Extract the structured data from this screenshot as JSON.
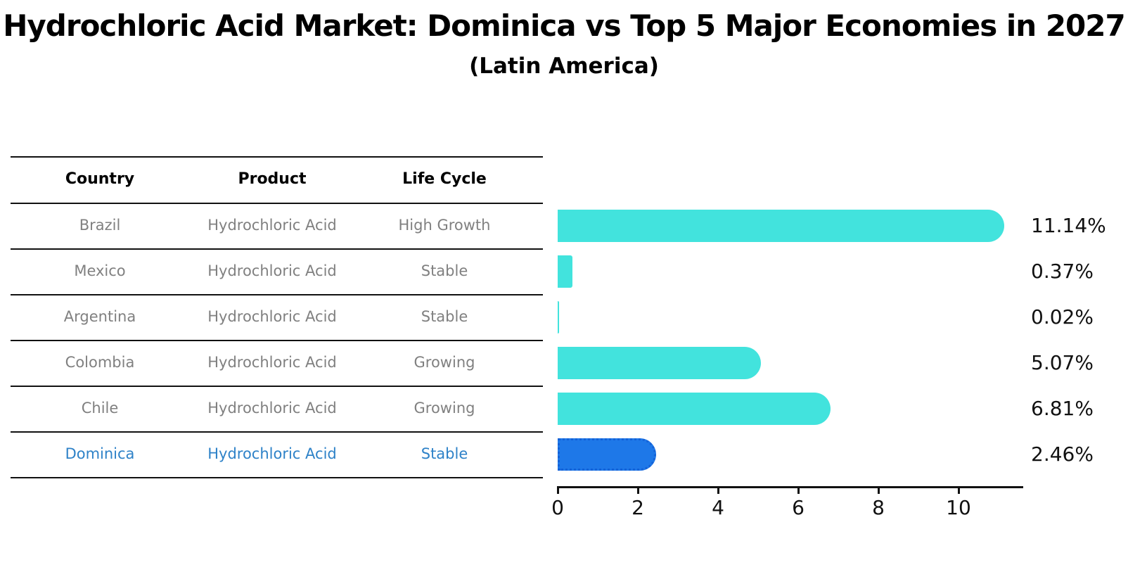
{
  "title": "Hydrochloric Acid Market: Dominica vs Top 5 Major Economies in 2027",
  "subtitle": "(Latin America)",
  "table": {
    "columns": [
      "Country",
      "Product",
      "Life Cycle"
    ],
    "rows": [
      {
        "country": "Brazil",
        "product": "Hydrochloric Acid",
        "life_cycle": "High Growth",
        "highlight": false
      },
      {
        "country": "Mexico",
        "product": "Hydrochloric Acid",
        "life_cycle": "Stable",
        "highlight": false
      },
      {
        "country": "Argentina",
        "product": "Hydrochloric Acid",
        "life_cycle": "Stable",
        "highlight": false
      },
      {
        "country": "Colombia",
        "product": "Hydrochloric Acid",
        "life_cycle": "Growing",
        "highlight": false
      },
      {
        "country": "Chile",
        "product": "Hydrochloric Acid",
        "life_cycle": "Growing",
        "highlight": false
      },
      {
        "country": "Dominica",
        "product": "Hydrochloric Acid",
        "life_cycle": "Stable",
        "highlight": true
      }
    ]
  },
  "chart_data": {
    "type": "bar",
    "orientation": "horizontal",
    "title": "Hydrochloric Acid Market: Dominica vs Top 5 Major Economies in 2027",
    "subtitle": "(Latin America)",
    "categories": [
      "Brazil",
      "Mexico",
      "Argentina",
      "Colombia",
      "Chile",
      "Dominica"
    ],
    "values": [
      11.14,
      0.37,
      0.02,
      5.07,
      6.81,
      2.46
    ],
    "value_labels": [
      "11.14%",
      "0.37%",
      "0.02%",
      "5.07%",
      "6.81%",
      "2.46%"
    ],
    "x_ticks": [
      0,
      2,
      4,
      6,
      8,
      10
    ],
    "xlim": [
      0,
      11.6
    ],
    "grid": false,
    "legend": "none",
    "bar_color": "#42E3DD",
    "highlight_index": 5,
    "highlight_color": "#1E78E8",
    "highlight_border_color": "#1462D8",
    "highlight_border_style": "dotted",
    "highlight_text_color": "#2E82C8"
  }
}
